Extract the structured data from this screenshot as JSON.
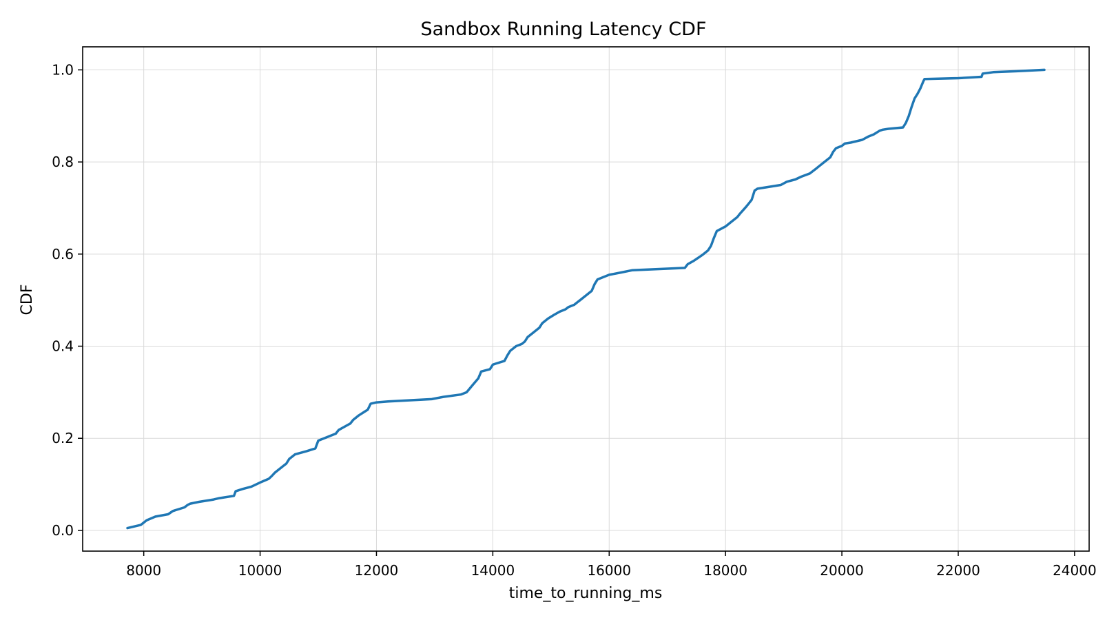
{
  "chart_data": {
    "type": "line",
    "title": "Sandbox Running Latency CDF",
    "xlabel": "time_to_running_ms",
    "ylabel": "CDF",
    "xlim": [
      6950,
      24250
    ],
    "ylim": [
      -0.045,
      1.05
    ],
    "xticks": [
      8000,
      10000,
      12000,
      14000,
      16000,
      18000,
      20000,
      22000,
      24000
    ],
    "xtick_labels": [
      "8000",
      "10000",
      "12000",
      "14000",
      "16000",
      "18000",
      "20000",
      "22000",
      "24000"
    ],
    "yticks": [
      0.0,
      0.2,
      0.4,
      0.6,
      0.8,
      1.0
    ],
    "ytick_labels": [
      "0.0",
      "0.2",
      "0.4",
      "0.6",
      "0.8",
      "1.0"
    ],
    "grid": true,
    "legend": "none",
    "line_color": "#1f77b4",
    "series": [
      {
        "x": [
          7720,
          7950,
          8050,
          8200,
          8420,
          8500,
          8700,
          8750,
          8800,
          8950,
          9200,
          9300,
          9550,
          9580,
          9700,
          9850,
          10000,
          10150,
          10200,
          10250,
          10300,
          10400,
          10450,
          10500,
          10600,
          10800,
          10950,
          11000,
          11100,
          11200,
          11300,
          11350,
          11450,
          11550,
          11600,
          11700,
          11800,
          11850,
          11900,
          12000,
          12200,
          12950,
          13150,
          13450,
          13550,
          13650,
          13750,
          13800,
          13950,
          14000,
          14050,
          14200,
          14250,
          14300,
          14400,
          14500,
          14550,
          14600,
          14700,
          14800,
          14850,
          14950,
          15050,
          15150,
          15250,
          15300,
          15400,
          15450,
          15500,
          15600,
          15700,
          15750,
          15800,
          15900,
          16000,
          16200,
          16400,
          17300,
          17350,
          17450,
          17600,
          17700,
          17750,
          17800,
          17850,
          18000,
          18100,
          18200,
          18250,
          18300,
          18350,
          18400,
          18450,
          18500,
          18550,
          18700,
          18950,
          19050,
          19200,
          19300,
          19450,
          19550,
          19600,
          19700,
          19800,
          19850,
          19900,
          20000,
          20050,
          20150,
          20350,
          20450,
          20550,
          20650,
          20700,
          20800,
          21050,
          21100,
          21150,
          21200,
          21250,
          21300,
          21350,
          21400,
          21420,
          22000,
          22400,
          22420,
          22600,
          23000,
          23480
        ],
        "y": [
          0.005,
          0.012,
          0.022,
          0.03,
          0.035,
          0.042,
          0.05,
          0.055,
          0.058,
          0.062,
          0.067,
          0.07,
          0.075,
          0.085,
          0.09,
          0.095,
          0.104,
          0.112,
          0.118,
          0.125,
          0.13,
          0.14,
          0.145,
          0.155,
          0.165,
          0.172,
          0.178,
          0.195,
          0.2,
          0.205,
          0.21,
          0.218,
          0.225,
          0.232,
          0.24,
          0.25,
          0.258,
          0.262,
          0.275,
          0.278,
          0.28,
          0.285,
          0.29,
          0.295,
          0.3,
          0.315,
          0.33,
          0.345,
          0.35,
          0.36,
          0.362,
          0.368,
          0.38,
          0.39,
          0.4,
          0.405,
          0.41,
          0.42,
          0.43,
          0.44,
          0.45,
          0.46,
          0.468,
          0.475,
          0.48,
          0.485,
          0.49,
          0.495,
          0.5,
          0.51,
          0.52,
          0.535,
          0.545,
          0.55,
          0.555,
          0.56,
          0.565,
          0.57,
          0.578,
          0.585,
          0.598,
          0.608,
          0.618,
          0.635,
          0.65,
          0.66,
          0.67,
          0.68,
          0.688,
          0.695,
          0.702,
          0.71,
          0.718,
          0.738,
          0.742,
          0.745,
          0.75,
          0.757,
          0.762,
          0.768,
          0.775,
          0.785,
          0.79,
          0.8,
          0.81,
          0.822,
          0.83,
          0.835,
          0.84,
          0.842,
          0.848,
          0.855,
          0.86,
          0.868,
          0.87,
          0.872,
          0.875,
          0.885,
          0.9,
          0.92,
          0.938,
          0.948,
          0.96,
          0.975,
          0.98,
          0.982,
          0.985,
          0.992,
          0.995,
          0.997,
          1.0
        ]
      }
    ]
  }
}
